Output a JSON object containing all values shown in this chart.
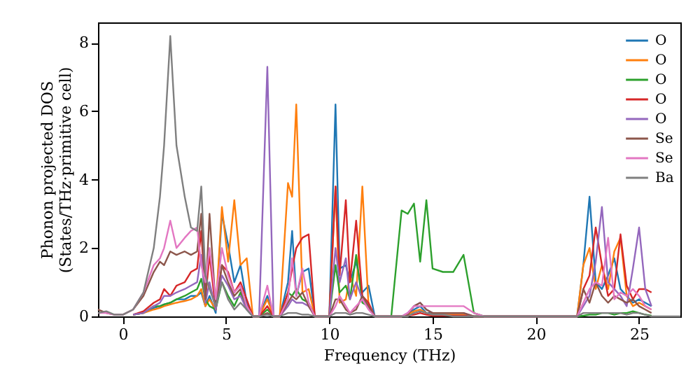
{
  "chart_data": {
    "type": "line",
    "xlabel": "Frequency (THz)",
    "ylabel": "Phonon projected DOS\n(States/THz·primitive cell)",
    "x": [
      -1.2,
      -0.8,
      -0.4,
      0,
      0.5,
      1,
      1.5,
      1.8,
      2.0,
      2.3,
      2.6,
      3.0,
      3.3,
      3.6,
      3.8,
      4.0,
      4.2,
      4.5,
      4.8,
      5.1,
      5.4,
      5.7,
      6.0,
      6.3,
      6.6,
      7.0,
      7.3,
      7.6,
      8.0,
      8.2,
      8.4,
      8.7,
      9.0,
      9.3,
      9.6,
      10.0,
      10.3,
      10.5,
      10.8,
      11.0,
      11.3,
      11.6,
      11.9,
      12.2,
      12.5,
      13.0,
      13.5,
      13.8,
      14.1,
      14.4,
      14.7,
      15.0,
      15.5,
      16.0,
      16.5,
      17.0,
      17.5,
      21.5,
      22.0,
      22.3,
      22.6,
      22.9,
      23.2,
      23.5,
      23.8,
      24.1,
      24.4,
      24.7,
      25.0,
      25.3,
      25.6,
      26.0,
      27.0
    ],
    "series": [
      {
        "name": "O",
        "color": "#1f77b4",
        "values": [
          null,
          null,
          null,
          null,
          0.05,
          0.1,
          0.25,
          0.3,
          0.35,
          0.4,
          0.5,
          0.5,
          0.6,
          0.6,
          0.7,
          0.3,
          0.6,
          0.1,
          3.0,
          2.1,
          1.0,
          1.5,
          0.4,
          0,
          0,
          0.6,
          0,
          0,
          1.0,
          2.5,
          0.6,
          1.3,
          1.4,
          0,
          0,
          0,
          6.2,
          1.4,
          1.5,
          1.0,
          1.6,
          0.7,
          0.9,
          0,
          0,
          0,
          0,
          0.05,
          0.2,
          0.3,
          0.1,
          0.1,
          0.05,
          0.05,
          0.05,
          0,
          0,
          0,
          0,
          1.5,
          3.5,
          1.0,
          0.8,
          1.2,
          1.7,
          0.8,
          0.6,
          0.4,
          0.5,
          0.4,
          0.3,
          null,
          null
        ]
      },
      {
        "name": "O",
        "color": "#ff7f0e",
        "values": [
          null,
          null,
          null,
          null,
          0.05,
          0.1,
          0.2,
          0.25,
          0.3,
          0.35,
          0.4,
          0.45,
          0.5,
          0.6,
          0.8,
          0.3,
          0.5,
          0.2,
          3.2,
          1.6,
          3.4,
          1.5,
          1.7,
          0,
          0,
          0.5,
          0,
          0,
          3.9,
          3.5,
          6.2,
          0.7,
          0.8,
          0,
          0,
          0,
          3.8,
          0.4,
          0.5,
          1.2,
          0.6,
          3.8,
          0.3,
          0,
          0,
          0,
          0,
          0.05,
          0.15,
          0.2,
          0.1,
          0.05,
          0.05,
          0.05,
          0.05,
          0,
          0,
          0,
          0,
          1.5,
          2.0,
          0.8,
          1.5,
          0.8,
          1.9,
          2.3,
          0.6,
          0.3,
          0.4,
          0.3,
          0.2,
          null,
          null
        ]
      },
      {
        "name": "O",
        "color": "#2ca02c",
        "values": [
          null,
          null,
          null,
          null,
          0.05,
          0.1,
          0.3,
          0.3,
          0.35,
          0.4,
          0.5,
          0.6,
          0.7,
          0.8,
          1.1,
          0.5,
          0.3,
          0.2,
          1.0,
          0.6,
          0.3,
          0.7,
          0.2,
          0,
          0,
          0.2,
          0,
          0,
          0.7,
          0.6,
          0.8,
          0.5,
          0.4,
          0,
          0,
          0,
          1.5,
          0.7,
          0.9,
          0.5,
          1.8,
          0.4,
          0.3,
          0,
          0,
          0,
          3.1,
          3.0,
          3.3,
          1.6,
          3.4,
          1.4,
          1.3,
          1.3,
          1.8,
          0.1,
          0,
          0,
          0,
          0.02,
          0.05,
          0.05,
          0.1,
          0.1,
          0.05,
          0.1,
          0.1,
          0.15,
          0.1,
          0.05,
          0.02,
          null,
          null
        ]
      },
      {
        "name": "O",
        "color": "#d62728",
        "values": [
          null,
          null,
          null,
          null,
          0.05,
          0.15,
          0.4,
          0.5,
          0.8,
          0.6,
          0.9,
          1.0,
          1.3,
          1.4,
          2.5,
          0.5,
          1.8,
          0.2,
          1.5,
          1.3,
          0.7,
          1.0,
          0.5,
          0,
          0,
          0.3,
          0,
          0,
          0.7,
          1.4,
          2.0,
          2.3,
          2.4,
          0,
          0,
          0,
          3.8,
          1.2,
          3.4,
          1.0,
          2.8,
          0.6,
          0.4,
          0,
          0,
          0,
          0,
          0.02,
          0.05,
          0.1,
          0.05,
          0.02,
          0.02,
          0.02,
          0.02,
          0,
          0,
          0,
          0,
          0.8,
          1.2,
          2.6,
          1.5,
          0.6,
          0.8,
          2.4,
          0.9,
          0.5,
          0.8,
          0.8,
          0.7,
          null,
          null
        ]
      },
      {
        "name": "O",
        "color": "#9467bd",
        "values": [
          null,
          null,
          null,
          null,
          0.05,
          0.1,
          0.3,
          0.4,
          0.6,
          0.6,
          0.7,
          0.8,
          0.9,
          1.0,
          1.8,
          0.4,
          1.0,
          0.2,
          1.2,
          0.9,
          0.5,
          0.6,
          0.2,
          0,
          0,
          7.3,
          0,
          0,
          0.3,
          0.5,
          0.4,
          0.4,
          0.3,
          0,
          0,
          0,
          2.0,
          1.0,
          1.7,
          0.5,
          1.0,
          0.5,
          0.3,
          0,
          0,
          0,
          0,
          0.1,
          0.3,
          0.4,
          0.2,
          0.1,
          0.1,
          0.1,
          0.1,
          0,
          0,
          0,
          0,
          0.3,
          0.6,
          1.6,
          3.2,
          1.0,
          0.8,
          0.6,
          0.3,
          1.4,
          2.6,
          0.8,
          0.3,
          null,
          null
        ]
      },
      {
        "name": "Se",
        "color": "#8c564b",
        "values": [
          0.2,
          0.1,
          0.05,
          0.05,
          0.2,
          0.6,
          1.3,
          1.6,
          1.5,
          1.9,
          1.8,
          1.9,
          1.8,
          1.9,
          3.0,
          0.5,
          3.0,
          0.3,
          1.5,
          1.0,
          0.6,
          0.8,
          0.3,
          0,
          0,
          0.1,
          0,
          0,
          0.4,
          0.6,
          0.5,
          0.7,
          0.3,
          0,
          0,
          0,
          0.5,
          0.5,
          0.2,
          0.1,
          0.2,
          0.6,
          0.3,
          0,
          0,
          0,
          0,
          0.05,
          0.3,
          0.4,
          0.2,
          0.1,
          0.1,
          0.1,
          0.1,
          0,
          0,
          0,
          0,
          0.8,
          0.4,
          1.0,
          0.6,
          0.4,
          0.6,
          0.5,
          0.4,
          0.5,
          0.3,
          0.2,
          0.1,
          null,
          null
        ]
      },
      {
        "name": "Se",
        "color": "#e377c2",
        "values": [
          0.1,
          0.1,
          0.05,
          0.05,
          0.2,
          0.7,
          1.5,
          1.7,
          2.0,
          2.8,
          2.0,
          2.3,
          2.5,
          2.6,
          1.5,
          1.0,
          2.0,
          0.5,
          2.0,
          1.2,
          0.7,
          0.9,
          0.3,
          0,
          0,
          0.9,
          0,
          0,
          0.5,
          1.7,
          0.6,
          1.4,
          0.4,
          0,
          0,
          0,
          0.3,
          0.6,
          0.3,
          0.1,
          0.3,
          0.5,
          0.2,
          0,
          0,
          0,
          0,
          0.1,
          0.3,
          0.3,
          0.3,
          0.3,
          0.3,
          0.3,
          0.3,
          0.1,
          0,
          0,
          0,
          0.4,
          0.8,
          1.0,
          0.9,
          2.3,
          0.5,
          0.7,
          0.6,
          0.8,
          0.6,
          0.3,
          0.2,
          null,
          null
        ]
      },
      {
        "name": "Ba",
        "color": "#7f7f7f",
        "values": [
          0.1,
          0.15,
          0.05,
          0.05,
          0.2,
          0.7,
          2.0,
          3.5,
          5.0,
          8.2,
          5.0,
          3.5,
          2.6,
          2.5,
          3.8,
          1.2,
          0.8,
          0.3,
          1.0,
          0.5,
          0.2,
          0.4,
          0.2,
          0,
          0,
          0.05,
          0,
          0,
          0.1,
          0.1,
          0.1,
          0.05,
          0.05,
          0,
          0,
          0,
          0.1,
          0.1,
          0.1,
          0.05,
          0.1,
          0.1,
          0.05,
          0,
          0,
          0,
          0,
          0,
          0.1,
          0.15,
          0.1,
          0.05,
          0.05,
          0,
          0,
          0,
          0,
          0,
          0,
          0.1,
          0.1,
          0.1,
          0.1,
          0.1,
          0.1,
          0.1,
          0.05,
          0.1,
          0.1,
          0.05,
          0,
          0,
          0
        ]
      }
    ],
    "xlim": [
      -1.2,
      27
    ],
    "ylim": [
      0,
      8.6
    ],
    "xticks": [
      0,
      5,
      10,
      15,
      20,
      25
    ],
    "yticks": [
      0,
      2,
      4,
      6,
      8
    ],
    "grid": false,
    "legend": "top right"
  }
}
